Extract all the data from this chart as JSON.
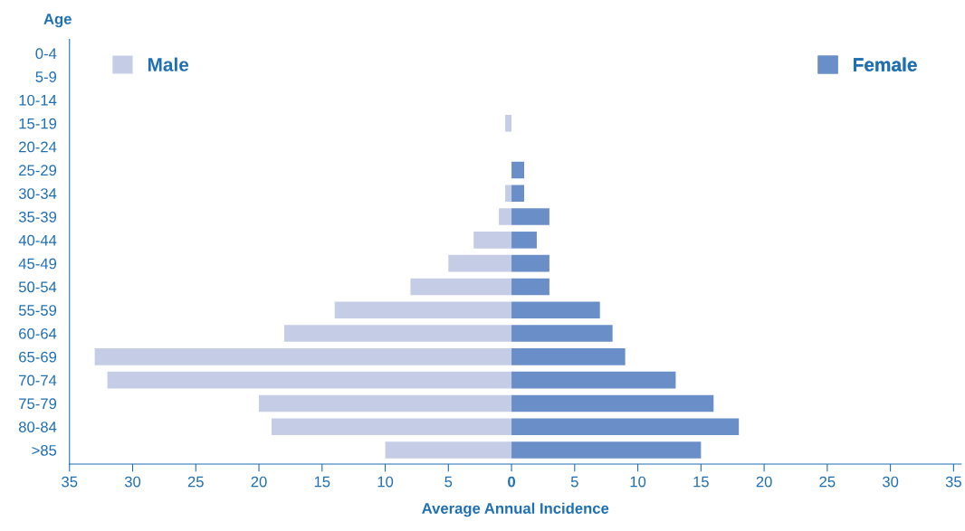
{
  "chart_data": {
    "type": "bar",
    "orientation": "horizontal",
    "stacked": true,
    "xlabel": "Average Annual Incidence",
    "ylabel": "Age",
    "categories": [
      "0-4",
      "5-9",
      "10-14",
      "15-19",
      "20-24",
      "25-29",
      "30-34",
      "35-39",
      "40-44",
      "45-49",
      "50-54",
      "55-59",
      "60-64",
      "65-69",
      "70-74",
      "75-79",
      "80-84",
      ">85"
    ],
    "series": [
      {
        "name": "Male",
        "color": "#c5cde6",
        "values": [
          0,
          0,
          0,
          -0.5,
          0,
          0,
          -0.5,
          -1,
          -3,
          -5,
          -8,
          -14,
          -18,
          -33,
          -32,
          -20,
          -19,
          -10
        ]
      },
      {
        "name": "Female",
        "color": "#6a8fc8",
        "values": [
          0,
          0,
          0,
          0,
          0,
          1,
          1,
          3,
          2,
          3,
          3,
          7,
          8,
          9,
          13,
          16,
          18,
          15
        ]
      }
    ],
    "xlim": [
      -35,
      35.6
    ],
    "xticks": [
      {
        "value": -35,
        "label": "35"
      },
      {
        "value": -30,
        "label": "30"
      },
      {
        "value": -25,
        "label": "25"
      },
      {
        "value": -20,
        "label": "20"
      },
      {
        "value": -15,
        "label": "15"
      },
      {
        "value": -10,
        "label": "10"
      },
      {
        "value": -5,
        "label": "5"
      },
      0,
      5,
      10,
      15,
      20,
      25,
      30,
      35
    ],
    "grid": false,
    "legend": "top"
  }
}
